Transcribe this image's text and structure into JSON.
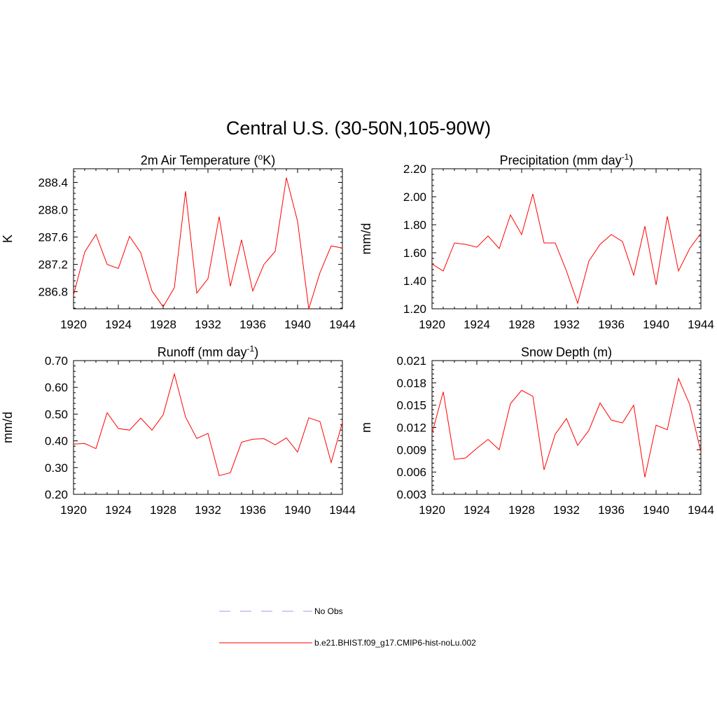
{
  "title": "Central U.S. (30-50N,105-90W)",
  "colors": {
    "model_line": "#ff0000",
    "obs_line": "#9999ff",
    "axes": "#000000"
  },
  "legend": [
    {
      "label": "No Obs",
      "style": "dashed",
      "color": "#9999ff"
    },
    {
      "label": "b.e21.BHIST.f09_g17.CMIP6-hist-noLu.002",
      "style": "solid",
      "color": "#ff0000"
    }
  ],
  "chart_data": [
    {
      "type": "line",
      "title": "2m Air Temperature (",
      "title_sup": "o",
      "title_suffix": "K)",
      "ylabel": "K",
      "xlim": [
        1920,
        1944
      ],
      "ylim": [
        286.55,
        288.6
      ],
      "yticks": [
        286.8,
        287.2,
        287.6,
        288.0,
        288.4
      ],
      "ytick_labels": [
        "286.8",
        "287.2",
        "287.6",
        "288.0",
        "288.4"
      ],
      "xticks": [
        1920,
        1924,
        1928,
        1932,
        1936,
        1940,
        1944
      ],
      "xtick_labels": [
        "1920",
        "1924",
        "1928",
        "1932",
        "1936",
        "1940",
        "1944"
      ],
      "series": [
        {
          "x": [
            1920,
            1921,
            1922,
            1923,
            1924,
            1925,
            1926,
            1927,
            1928,
            1929,
            1930,
            1931,
            1932,
            1933,
            1934,
            1935,
            1936,
            1937,
            1938,
            1939,
            1940,
            1941,
            1942,
            1943,
            1944
          ],
          "values": [
            286.75,
            287.38,
            287.64,
            287.2,
            287.14,
            287.61,
            287.37,
            286.81,
            286.58,
            286.86,
            288.27,
            286.78,
            286.99,
            287.9,
            286.88,
            287.56,
            286.81,
            287.2,
            287.39,
            288.47,
            287.83,
            286.55,
            287.08,
            287.47,
            287.44
          ]
        }
      ]
    },
    {
      "type": "line",
      "title": "Precipitation (mm day",
      "title_sup": "-1",
      "title_suffix": ")",
      "ylabel": "mm/d",
      "xlim": [
        1920,
        1944
      ],
      "ylim": [
        1.2,
        2.2
      ],
      "yticks": [
        1.2,
        1.4,
        1.6,
        1.8,
        2.0,
        2.2
      ],
      "ytick_labels": [
        "1.20",
        "1.40",
        "1.60",
        "1.80",
        "2.00",
        "2.20"
      ],
      "xticks": [
        1920,
        1924,
        1928,
        1932,
        1936,
        1940,
        1944
      ],
      "xtick_labels": [
        "1920",
        "1924",
        "1928",
        "1932",
        "1936",
        "1940",
        "1944"
      ],
      "series": [
        {
          "x": [
            1920,
            1921,
            1922,
            1923,
            1924,
            1925,
            1926,
            1927,
            1928,
            1929,
            1930,
            1931,
            1932,
            1933,
            1934,
            1935,
            1936,
            1937,
            1938,
            1939,
            1940,
            1941,
            1942,
            1943,
            1944
          ],
          "values": [
            1.52,
            1.47,
            1.67,
            1.66,
            1.64,
            1.72,
            1.63,
            1.87,
            1.73,
            2.02,
            1.67,
            1.67,
            1.47,
            1.24,
            1.54,
            1.66,
            1.73,
            1.68,
            1.44,
            1.79,
            1.37,
            1.86,
            1.47,
            1.63,
            1.74
          ]
        }
      ]
    },
    {
      "type": "line",
      "title": "Runoff (mm day",
      "title_sup": "-1",
      "title_suffix": ")",
      "ylabel": "mm/d",
      "xlim": [
        1920,
        1944
      ],
      "ylim": [
        0.2,
        0.7
      ],
      "yticks": [
        0.2,
        0.3,
        0.4,
        0.5,
        0.6,
        0.7
      ],
      "ytick_labels": [
        "0.20",
        "0.30",
        "0.40",
        "0.50",
        "0.60",
        "0.70"
      ],
      "xticks": [
        1920,
        1924,
        1928,
        1932,
        1936,
        1940,
        1944
      ],
      "xtick_labels": [
        "1920",
        "1924",
        "1928",
        "1932",
        "1936",
        "1940",
        "1944"
      ],
      "series": [
        {
          "x": [
            1920,
            1921,
            1922,
            1923,
            1924,
            1925,
            1926,
            1927,
            1928,
            1929,
            1930,
            1931,
            1932,
            1933,
            1934,
            1935,
            1936,
            1937,
            1938,
            1939,
            1940,
            1941,
            1942,
            1943,
            1944
          ],
          "values": [
            0.388,
            0.39,
            0.371,
            0.505,
            0.446,
            0.44,
            0.485,
            0.44,
            0.497,
            0.65,
            0.489,
            0.409,
            0.428,
            0.27,
            0.281,
            0.395,
            0.406,
            0.408,
            0.385,
            0.411,
            0.358,
            0.486,
            0.472,
            0.319,
            0.469
          ]
        }
      ]
    },
    {
      "type": "line",
      "title": "Snow Depth (m)",
      "title_sup": "",
      "title_suffix": "",
      "ylabel": "m",
      "xlim": [
        1920,
        1944
      ],
      "ylim": [
        0.003,
        0.021
      ],
      "yticks": [
        0.003,
        0.006,
        0.009,
        0.012,
        0.015,
        0.018,
        0.021
      ],
      "ytick_labels": [
        "0.003",
        "0.006",
        "0.009",
        "0.012",
        "0.015",
        "0.018",
        "0.021"
      ],
      "xticks": [
        1920,
        1924,
        1928,
        1932,
        1936,
        1940,
        1944
      ],
      "xtick_labels": [
        "1920",
        "1924",
        "1928",
        "1932",
        "1936",
        "1940",
        "1944"
      ],
      "series": [
        {
          "x": [
            1920,
            1921,
            1922,
            1923,
            1924,
            1925,
            1926,
            1927,
            1928,
            1929,
            1930,
            1931,
            1932,
            1933,
            1934,
            1935,
            1936,
            1937,
            1938,
            1939,
            1940,
            1941,
            1942,
            1943,
            1944
          ],
          "values": [
            0.0112,
            0.0168,
            0.0077,
            0.0079,
            0.0092,
            0.0104,
            0.009,
            0.0152,
            0.017,
            0.0162,
            0.0063,
            0.0111,
            0.0132,
            0.0096,
            0.0116,
            0.0153,
            0.013,
            0.0126,
            0.015,
            0.0053,
            0.0123,
            0.0117,
            0.0186,
            0.0151,
            0.0087
          ]
        }
      ]
    }
  ]
}
